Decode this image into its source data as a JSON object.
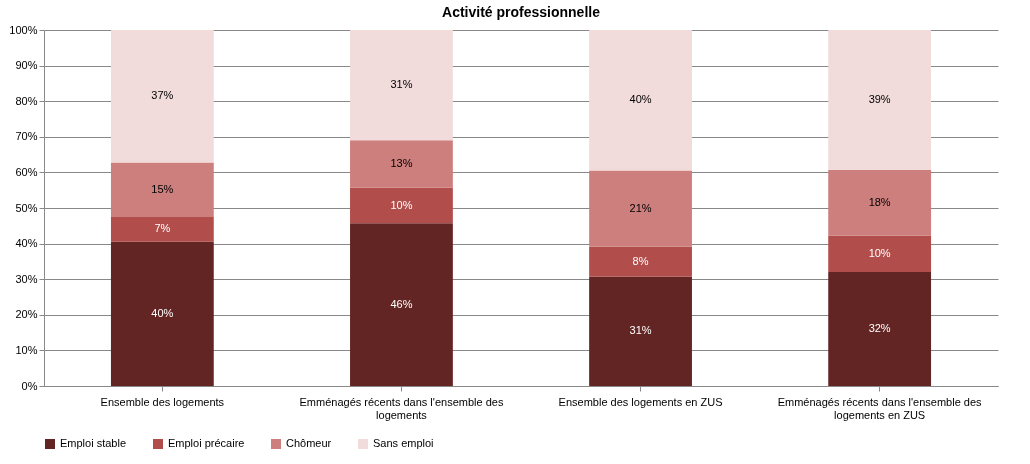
{
  "chart_data": {
    "type": "bar",
    "stacked": true,
    "title": "Activité professionnelle",
    "categories": [
      "Ensemble des logements",
      "Emménagés récents dans l'ensemble des logements",
      "Ensemble des logements en ZUS",
      "Emménagés récents dans l'ensemble des logements en ZUS"
    ],
    "series": [
      {
        "name": "Emploi stable",
        "color": "#632523",
        "values": [
          40.5,
          45.7,
          30.7,
          32
        ],
        "value_labels": [
          "40%",
          "46%",
          "31%",
          "32%"
        ]
      },
      {
        "name": "Emploi précaire",
        "color": "#b14e4b",
        "values": [
          7,
          10,
          8.4,
          10.3
        ],
        "value_labels": [
          "7%",
          "10%",
          "8%",
          "10%"
        ]
      },
      {
        "name": "Chômeur",
        "color": "#cd7f7d",
        "values": [
          15.3,
          13.3,
          21.4,
          18.4
        ],
        "value_labels": [
          "15%",
          "13%",
          "21%",
          "18%"
        ]
      },
      {
        "name": "Sans emploi",
        "color": "#f1dbdb",
        "values": [
          37.2,
          31,
          39.5,
          39.3
        ],
        "value_labels": [
          "37%",
          "31%",
          "40%",
          "39%"
        ]
      }
    ],
    "ylim": [
      0,
      100
    ],
    "yticks": [
      {
        "value": 0,
        "label": "0%"
      },
      {
        "value": 10,
        "label": "10%"
      },
      {
        "value": 20,
        "label": "20%"
      },
      {
        "value": 30,
        "label": "30%"
      },
      {
        "value": 40,
        "label": "40%"
      },
      {
        "value": 50,
        "label": "50%"
      },
      {
        "value": 60,
        "label": "60%"
      },
      {
        "value": 70,
        "label": "70%"
      },
      {
        "value": 80,
        "label": "80%"
      },
      {
        "value": 90,
        "label": "90%"
      },
      {
        "value": 100,
        "label": "100%"
      }
    ],
    "grid": "y",
    "legend": "bottom"
  }
}
